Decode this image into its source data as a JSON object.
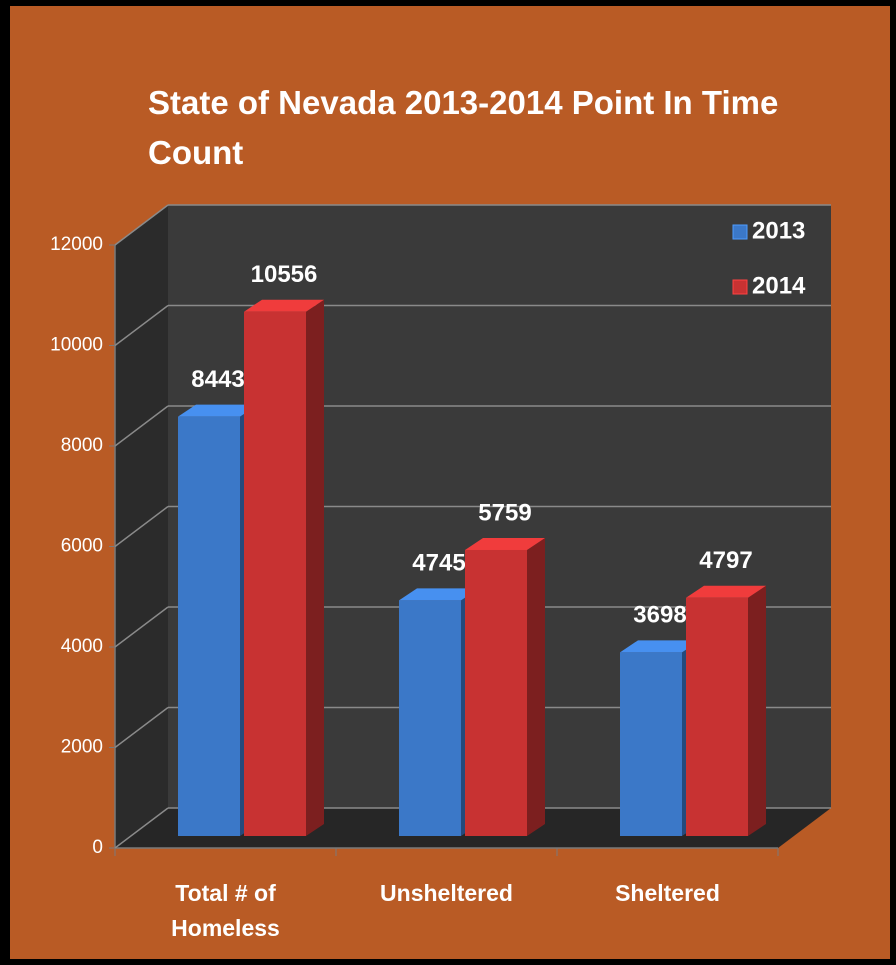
{
  "chart_data": {
    "type": "bar3d",
    "title": "State of Nevada 2013-2014 Point In Time Count",
    "categories": [
      "Total # of Homeless",
      "Unsheltered",
      "Sheltered"
    ],
    "series": [
      {
        "name": "2013",
        "color": "#3b78c8",
        "values": [
          8443,
          4745,
          3698
        ]
      },
      {
        "name": "2014",
        "color": "#c83232",
        "values": [
          10556,
          5759,
          4797
        ]
      }
    ],
    "ylim": [
      0,
      12000
    ],
    "yticks": [
      0,
      2000,
      4000,
      6000,
      8000,
      10000,
      12000
    ],
    "grid": true,
    "legend": "top-right"
  }
}
